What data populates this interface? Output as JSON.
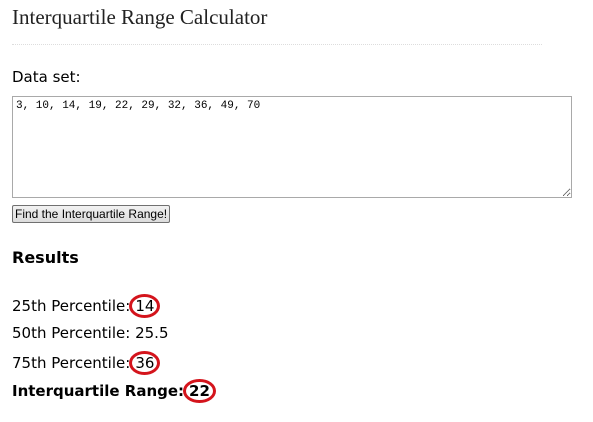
{
  "header": {
    "title": "Interquartile Range Calculator"
  },
  "form": {
    "label": "Data set:",
    "input": "3, 10, 14, 19, 22, 29, 32, 36, 49, 70",
    "button": "Find the Interquartile Range!"
  },
  "results": {
    "heading": "Results",
    "rows": [
      {
        "label": "25th Percentile:",
        "value": "14"
      },
      {
        "label": "50th Percentile:",
        "value": "25.5"
      },
      {
        "label": "75th Percentile:",
        "value": "36"
      },
      {
        "label": "Interquartile Range:",
        "value": "22"
      }
    ]
  }
}
